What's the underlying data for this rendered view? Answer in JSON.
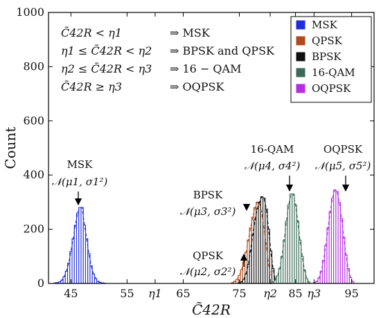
{
  "chart_data": {
    "type": "bar",
    "title": "",
    "xlabel": "C̃42R",
    "ylabel": "Count",
    "xlim": [
      41,
      99
    ],
    "ylim": [
      0,
      1000
    ],
    "x_ticks": [
      {
        "value": 45,
        "label": "45"
      },
      {
        "value": 55,
        "label": "55"
      },
      {
        "value": 60,
        "label": "η1"
      },
      {
        "value": 65,
        "label": "65"
      },
      {
        "value": 75,
        "label": "75"
      },
      {
        "value": 80.5,
        "label": "η2"
      },
      {
        "value": 85,
        "label": "85"
      },
      {
        "value": 88.3,
        "label": "η3"
      },
      {
        "value": 95,
        "label": "95"
      }
    ],
    "y_ticks": [
      0,
      200,
      400,
      600,
      800,
      1000
    ],
    "rules": [
      {
        "lhs": "C̃42R < η1",
        "rhs": "⇒  MSK"
      },
      {
        "lhs": "η1 ≤ C̃42R < η2",
        "rhs": "⇒  BPSK and QPSK"
      },
      {
        "lhs": "η2 ≤ C̃42R < η3",
        "rhs": "⇒  16 − QAM"
      },
      {
        "lhs": "C̃42R ≥ η3",
        "rhs": "⇒  OQPSK"
      }
    ],
    "legend_position": "top-right",
    "series": [
      {
        "name": "MSK",
        "color": "#1f2fd8",
        "fill": "#ffffff",
        "x": [
          42.2,
          42.6,
          43.0,
          43.4,
          43.8,
          44.2,
          44.6,
          45.0,
          45.4,
          45.8,
          46.2,
          46.6,
          47.0,
          47.4,
          47.8,
          48.2,
          48.6,
          49.0,
          49.4,
          49.8,
          50.2,
          50.6,
          51.0
        ],
        "values": [
          2,
          3,
          6,
          12,
          25,
          45,
          75,
          118,
          165,
          215,
          260,
          280,
          280,
          215,
          165,
          110,
          65,
          35,
          18,
          8,
          4,
          2,
          1
        ],
        "label_top": "MSK",
        "label_bottom": "𝒩(μ1, σ1²)"
      },
      {
        "name": "QPSK",
        "color": "#b04a1c",
        "fill": "#ffffff",
        "x": [
          73.8,
          74.2,
          74.6,
          75.0,
          75.4,
          75.8,
          76.2,
          76.6,
          77.0,
          77.4,
          77.8,
          78.2,
          78.6,
          79.0,
          79.4,
          79.8,
          80.2,
          80.6
        ],
        "values": [
          3,
          8,
          15,
          30,
          50,
          80,
          115,
          160,
          205,
          245,
          280,
          300,
          295,
          260,
          205,
          140,
          70,
          30
        ],
        "label_top": "QPSK",
        "label_bottom": "𝒩(μ2, σ2²)"
      },
      {
        "name": "BPSK",
        "color": "#111111",
        "fill": "#ffffff",
        "x": [
          75.0,
          75.4,
          75.8,
          76.2,
          76.6,
          77.0,
          77.4,
          77.8,
          78.2,
          78.6,
          79.0,
          79.4,
          79.8,
          80.2,
          80.6,
          81.0,
          81.4
        ],
        "values": [
          2,
          6,
          15,
          35,
          70,
          120,
          180,
          235,
          275,
          300,
          320,
          315,
          275,
          200,
          120,
          55,
          15
        ],
        "label_top": "BPSK",
        "label_bottom": "𝒩(μ3, σ3²)"
      },
      {
        "name": "16-QAM",
        "color": "#3a6b58",
        "fill": "#ffffff",
        "x": [
          80.6,
          81.0,
          81.4,
          81.8,
          82.2,
          82.6,
          83.0,
          83.4,
          83.8,
          84.2,
          84.6,
          85.0,
          85.4,
          85.8,
          86.2,
          86.6,
          87.0,
          87.4
        ],
        "values": [
          2,
          5,
          12,
          28,
          55,
          100,
          160,
          230,
          290,
          330,
          330,
          290,
          230,
          160,
          100,
          50,
          18,
          5
        ],
        "label_top": "16-QAM",
        "label_bottom": "𝒩(μ4, σ4²)"
      },
      {
        "name": "OQPSK",
        "color": "#b52fe0",
        "fill": "#ffffff",
        "x": [
          88.4,
          88.8,
          89.2,
          89.6,
          90.0,
          90.4,
          90.8,
          91.2,
          91.6,
          92.0,
          92.4,
          92.8,
          93.2,
          93.6,
          94.0,
          94.4,
          94.8,
          95.2
        ],
        "values": [
          3,
          8,
          20,
          45,
          85,
          140,
          205,
          265,
          315,
          345,
          340,
          300,
          240,
          170,
          105,
          55,
          22,
          6
        ],
        "label_top": "OQPSK",
        "label_bottom": "𝒩(μ5, σ5²)"
      }
    ]
  }
}
